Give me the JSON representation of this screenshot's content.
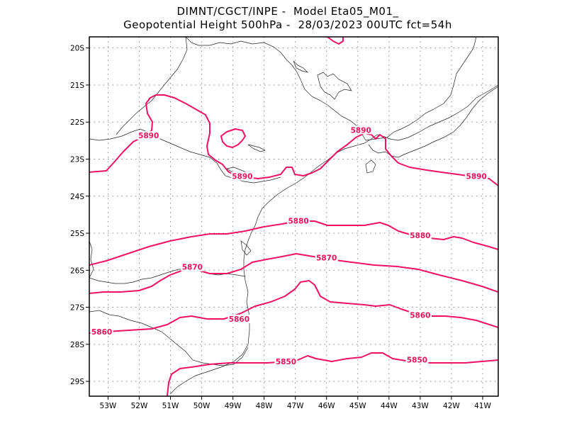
{
  "title": {
    "line1": "DIMNT/CGCT/INPE -  Model Eta05_M01_",
    "line2": "Geopotential Height 500hPa -  28/03/2023 00UTC fct=54h"
  },
  "map": {
    "lon_range": [
      -53.6,
      -40.5
    ],
    "lat_range": [
      -29.4,
      -19.7
    ],
    "lon_ticks": [
      {
        "value": -53,
        "label": "53W"
      },
      {
        "value": -52,
        "label": "52W"
      },
      {
        "value": -51,
        "label": "51W"
      },
      {
        "value": -50,
        "label": "50W"
      },
      {
        "value": -49,
        "label": "49W"
      },
      {
        "value": -48,
        "label": "48W"
      },
      {
        "value": -47,
        "label": "47W"
      },
      {
        "value": -46,
        "label": "46W"
      },
      {
        "value": -45,
        "label": "45W"
      },
      {
        "value": -44,
        "label": "44W"
      },
      {
        "value": -43,
        "label": "43W"
      },
      {
        "value": -42,
        "label": "42W"
      },
      {
        "value": -41,
        "label": "41W"
      }
    ],
    "lat_ticks": [
      {
        "value": -20,
        "label": "20S"
      },
      {
        "value": -21,
        "label": "21S"
      },
      {
        "value": -22,
        "label": "22S"
      },
      {
        "value": -23,
        "label": "23S"
      },
      {
        "value": -24,
        "label": "24S"
      },
      {
        "value": -25,
        "label": "25S"
      },
      {
        "value": -26,
        "label": "26S"
      },
      {
        "value": -27,
        "label": "27S"
      },
      {
        "value": -28,
        "label": "28S"
      },
      {
        "value": -29,
        "label": "29S"
      }
    ],
    "grid": true,
    "contour_color": "#ee1166",
    "contour_labels": [
      {
        "text": "5890",
        "lon": -51.7,
        "lat": -22.4
      },
      {
        "text": "5890",
        "lon": -48.7,
        "lat": -23.5
      },
      {
        "text": "5890",
        "lon": -44.9,
        "lat": -22.25
      },
      {
        "text": "5890",
        "lon": -41.2,
        "lat": -23.5
      },
      {
        "text": "5880",
        "lon": -46.9,
        "lat": -24.7
      },
      {
        "text": "5880",
        "lon": -43.0,
        "lat": -25.1
      },
      {
        "text": "5870",
        "lon": -50.3,
        "lat": -25.95
      },
      {
        "text": "5870",
        "lon": -46.0,
        "lat": -25.7
      },
      {
        "text": "5860",
        "lon": -48.8,
        "lat": -27.35
      },
      {
        "text": "5860",
        "lon": -43.0,
        "lat": -27.25
      },
      {
        "text": "5860",
        "lon": -53.2,
        "lat": -27.7
      },
      {
        "text": "5850",
        "lon": -47.3,
        "lat": -28.5
      },
      {
        "text": "5850",
        "lon": -43.1,
        "lat": -28.45
      }
    ]
  }
}
